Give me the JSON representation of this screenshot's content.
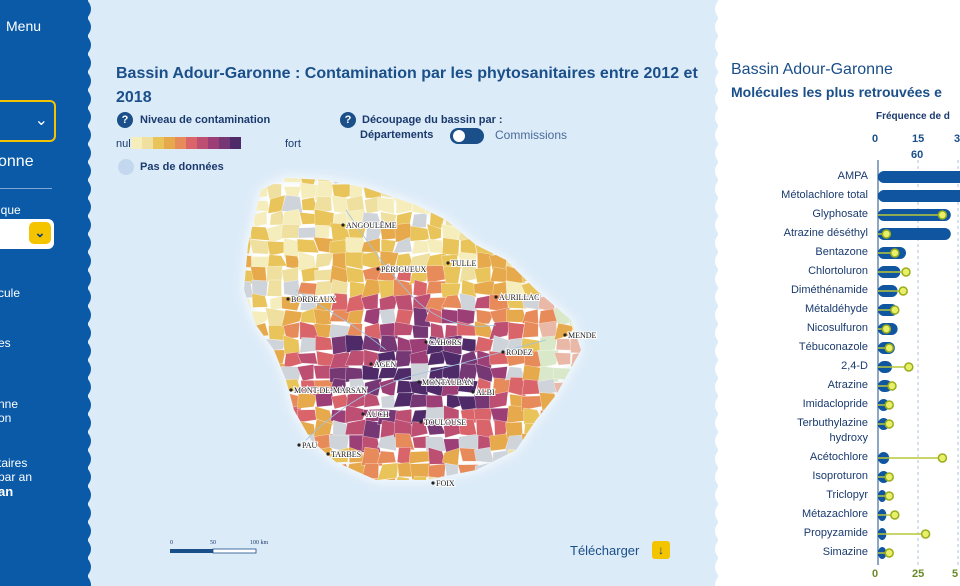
{
  "sidebar": {
    "menu_label": "Menu",
    "region_fragment": "onne",
    "type_fragment": "ique",
    "items": [
      {
        "text": "cule"
      },
      {
        "text": "es"
      },
      {
        "text": "nne\non"
      },
      {
        "text": "taires\npar an"
      },
      {
        "text": "an"
      }
    ]
  },
  "map_panel": {
    "title": "Bassin Adour-Garonne : Contamination par les phytosanitaires entre 2012 et 2018",
    "help_icon": "?",
    "legend_title": "Niveau de contamination",
    "legend_low": "nul",
    "legend_high": "fort",
    "legend_colors": [
      "#f6edbc",
      "#efe0a0",
      "#e9c45a",
      "#e6a94b",
      "#e88b5a",
      "#d9656a",
      "#bd4f72",
      "#9b3f76",
      "#763775",
      "#4f2a68"
    ],
    "no_data_label": "Pas de données",
    "split_label": "Découpage du bassin par :",
    "split_option_left": "Départements",
    "split_option_right": "Commissions",
    "cities": [
      "ANGOULÊME",
      "PÉRIGUEUX",
      "TULLE",
      "BORDEAUX",
      "AURILLAC",
      "MENDE",
      "CAHORS",
      "RODEZ",
      "AGEN",
      "MONT-DE-MARSAN",
      "MONTAUBAN",
      "ALBI",
      "AUCH",
      "TOULOUSE",
      "PAU",
      "TARBES",
      "FOIX"
    ],
    "scale_labels": [
      "0",
      "50",
      "100 km"
    ],
    "download_label": "Télécharger",
    "download_icon": "↓"
  },
  "molecules_panel": {
    "title": "Bassin Adour-Garonne",
    "subtitle": "Molécules les plus retrouvées e",
    "frequency_label": "Fréquence de d",
    "top_ticks": [
      "0",
      "15",
      "3"
    ],
    "top_ticks2": [
      "60"
    ],
    "bottom_ticks": [
      "0",
      "25",
      "5"
    ],
    "molecules": [
      {
        "name": "AMPA",
        "freq": 100,
        "dot": null
      },
      {
        "name": "Métolachlore total",
        "freq": 100,
        "dot": null
      },
      {
        "name": "Glyphosate",
        "freq": 26,
        "dot": 23
      },
      {
        "name": "Atrazine déséthyl",
        "freq": 26,
        "dot": 3
      },
      {
        "name": "Bentazone",
        "freq": 10,
        "dot": 6
      },
      {
        "name": "Chlortoluron",
        "freq": 8,
        "dot": 10
      },
      {
        "name": "Diméthénamide",
        "freq": 7,
        "dot": 9
      },
      {
        "name": "Métaldéhyde",
        "freq": 7,
        "dot": 6
      },
      {
        "name": "Nicosulfuron",
        "freq": 7,
        "dot": 3
      },
      {
        "name": "Tébuconazole",
        "freq": 6,
        "dot": 4
      },
      {
        "name": "2,4-D",
        "freq": 5,
        "dot": 11
      },
      {
        "name": "Atrazine",
        "freq": 5,
        "dot": 5
      },
      {
        "name": "Imidaclopride",
        "freq": 4,
        "dot": 4
      },
      {
        "name": "Terbuthylazine hydroxy",
        "freq": 4,
        "dot": 4
      },
      {
        "name": "Acétochlore",
        "freq": 4,
        "dot": 23
      },
      {
        "name": "Isoproturon",
        "freq": 4,
        "dot": 4
      },
      {
        "name": "Triclopyr",
        "freq": 3,
        "dot": 4
      },
      {
        "name": "Métazachlore",
        "freq": 3,
        "dot": 6
      },
      {
        "name": "Propyzamide",
        "freq": 3,
        "dot": 17
      },
      {
        "name": "Simazine",
        "freq": 3,
        "dot": 4
      }
    ]
  }
}
